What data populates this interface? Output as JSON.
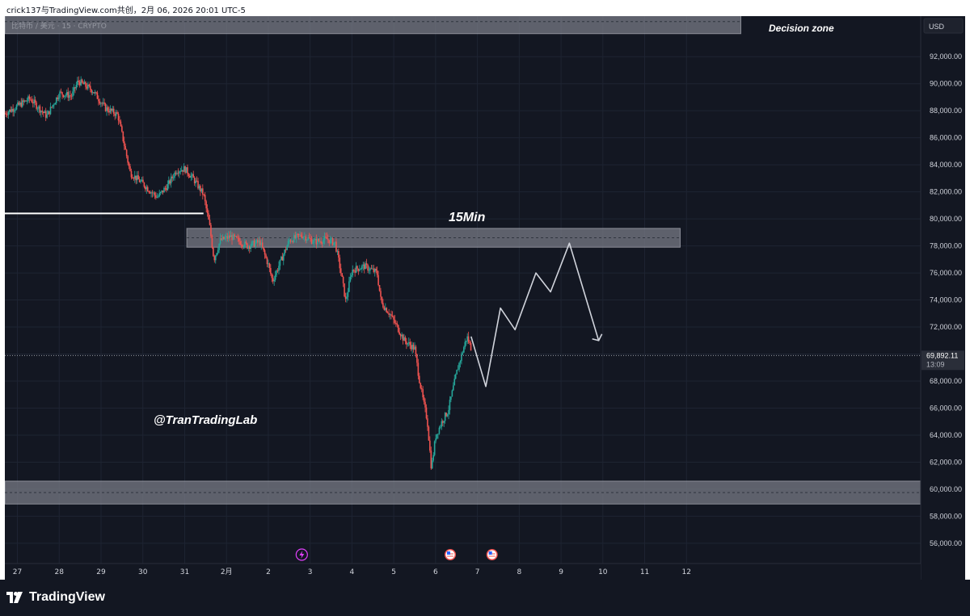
{
  "header": {
    "attribution": "crick137与TradingView.com共创，2月 06, 2026 20:01 UTC-5"
  },
  "symbol": {
    "label": "比特币 / 美元 · 15 · CRYPTO"
  },
  "currency_button": "USD",
  "annotations": {
    "decision_zone": "Decision zone",
    "timeframe": "15Min",
    "watermark": "@TranTradingLab"
  },
  "last_price": {
    "value": "69,892.11",
    "countdown": "13:09"
  },
  "footer": {
    "brand": "TradingView"
  },
  "event_markers": [
    {
      "icon": "lightning-icon",
      "x": 6.8
    },
    {
      "icon": "us-flag-icon",
      "x": 10.35
    },
    {
      "icon": "us-flag-icon",
      "x": 11.35
    }
  ],
  "colors": {
    "background": "#131722",
    "grid": "#1e2432",
    "up": "#26a69a",
    "down": "#ef5350",
    "zone_fill": "#787b86",
    "accent_event": "#e040fb",
    "text": "#d1d4dc"
  },
  "chart_data": {
    "type": "candlestick",
    "y_ticks": [
      56000,
      58000,
      60000,
      62000,
      64000,
      66000,
      68000,
      70000,
      72000,
      74000,
      76000,
      78000,
      80000,
      82000,
      84000,
      86000,
      88000,
      90000,
      92000
    ],
    "y_tick_labels": [
      "56,000.00",
      "58,000.00",
      "60,000.00",
      "62,000.00",
      "64,000.00",
      "66,000.00",
      "68,000.00",
      "70,000.00",
      "72,000.00",
      "74,000.00",
      "76,000.00",
      "78,000.00",
      "80,000.00",
      "82,000.00",
      "84,000.00",
      "86,000.00",
      "88,000.00",
      "90,000.00",
      "92,000.00"
    ],
    "ylim": [
      54500,
      95000
    ],
    "x_ticks": [
      {
        "x": 0,
        "label": "27"
      },
      {
        "x": 1,
        "label": "28"
      },
      {
        "x": 2,
        "label": "29"
      },
      {
        "x": 3,
        "label": "30"
      },
      {
        "x": 4,
        "label": "31"
      },
      {
        "x": 5,
        "label": "2月"
      },
      {
        "x": 6,
        "label": "2"
      },
      {
        "x": 7,
        "label": "3"
      },
      {
        "x": 8,
        "label": "4"
      },
      {
        "x": 9,
        "label": "5"
      },
      {
        "x": 10,
        "label": "6"
      },
      {
        "x": 11,
        "label": "7"
      },
      {
        "x": 12,
        "label": "8"
      },
      {
        "x": 13,
        "label": "9"
      },
      {
        "x": 14,
        "label": "10"
      },
      {
        "x": 15,
        "label": "11"
      },
      {
        "x": 16,
        "label": "12"
      }
    ],
    "xlim": [
      -0.3,
      21.6
    ],
    "price_path": [
      [
        -0.3,
        87800
      ],
      [
        0.3,
        88900
      ],
      [
        0.7,
        87600
      ],
      [
        1.0,
        89300
      ],
      [
        1.3,
        89100
      ],
      [
        1.45,
        90200
      ],
      [
        1.8,
        89500
      ],
      [
        2.1,
        88200
      ],
      [
        2.4,
        87700
      ],
      [
        2.7,
        83400
      ],
      [
        3.0,
        82600
      ],
      [
        3.2,
        82000
      ],
      [
        3.35,
        81600
      ],
      [
        3.6,
        82500
      ],
      [
        3.8,
        83600
      ],
      [
        4.0,
        83700
      ],
      [
        4.2,
        83000
      ],
      [
        4.45,
        81800
      ],
      [
        4.6,
        79400
      ],
      [
        4.7,
        77000
      ],
      [
        4.85,
        78400
      ],
      [
        5.1,
        78700
      ],
      [
        5.5,
        78000
      ],
      [
        5.8,
        78300
      ],
      [
        6.0,
        76600
      ],
      [
        6.1,
        75400
      ],
      [
        6.3,
        76900
      ],
      [
        6.5,
        78400
      ],
      [
        6.8,
        78800
      ],
      [
        7.1,
        78300
      ],
      [
        7.4,
        78500
      ],
      [
        7.6,
        78200
      ],
      [
        7.75,
        75800
      ],
      [
        7.85,
        73900
      ],
      [
        8.0,
        76200
      ],
      [
        8.3,
        76500
      ],
      [
        8.6,
        76000
      ],
      [
        8.7,
        73800
      ],
      [
        8.9,
        73000
      ],
      [
        9.1,
        71900
      ],
      [
        9.25,
        71000
      ],
      [
        9.5,
        70400
      ],
      [
        9.6,
        68300
      ],
      [
        9.7,
        66600
      ],
      [
        9.8,
        65100
      ],
      [
        9.9,
        61500
      ],
      [
        10.0,
        63900
      ],
      [
        10.15,
        65000
      ],
      [
        10.3,
        65800
      ],
      [
        10.5,
        68600
      ],
      [
        10.6,
        69700
      ],
      [
        10.75,
        71300
      ],
      [
        10.85,
        70400
      ]
    ],
    "forecast_path": [
      [
        10.85,
        71300
      ],
      [
        11.2,
        67600
      ],
      [
        11.55,
        73400
      ],
      [
        11.9,
        71800
      ],
      [
        12.4,
        76000
      ],
      [
        12.75,
        74600
      ],
      [
        13.2,
        78200
      ],
      [
        13.9,
        71000
      ]
    ],
    "zones": [
      {
        "name": "decision-zone",
        "x_start": -0.3,
        "x_end": 17.3,
        "y_low": 93700,
        "y_high": 95500
      },
      {
        "name": "resistance-zone-15min",
        "x_start": 4.05,
        "x_end": 15.85,
        "y_low": 77900,
        "y_high": 79300
      },
      {
        "name": "support-zone",
        "x_start": -0.3,
        "x_end": 21.6,
        "y_low": 58900,
        "y_high": 60600
      }
    ],
    "horizontal_line": {
      "x_start": -0.3,
      "x_end": 4.45,
      "y": 80400
    },
    "current_price": 69892.11
  }
}
